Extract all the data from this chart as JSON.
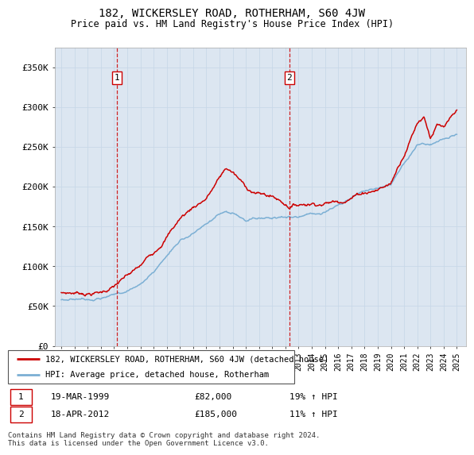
{
  "title": "182, WICKERSLEY ROAD, ROTHERHAM, S60 4JW",
  "subtitle": "Price paid vs. HM Land Registry's House Price Index (HPI)",
  "legend_line1": "182, WICKERSLEY ROAD, ROTHERHAM, S60 4JW (detached house)",
  "legend_line2": "HPI: Average price, detached house, Rotherham",
  "transaction1_date": "19-MAR-1999",
  "transaction1_price": "£82,000",
  "transaction1_hpi": "19% ↑ HPI",
  "transaction2_date": "18-APR-2012",
  "transaction2_price": "£185,000",
  "transaction2_hpi": "11% ↑ HPI",
  "footer": "Contains HM Land Registry data © Crown copyright and database right 2024.\nThis data is licensed under the Open Government Licence v3.0.",
  "price_line_color": "#cc0000",
  "hpi_line_color": "#7bafd4",
  "background_color": "#dce6f1",
  "plot_bg_color": "#ffffff",
  "grid_color": "#c8d8e8",
  "ylim": [
    0,
    375000
  ],
  "yticks": [
    0,
    50000,
    100000,
    150000,
    200000,
    250000,
    300000,
    350000
  ],
  "ytick_labels": [
    "£0",
    "£50K",
    "£100K",
    "£150K",
    "£200K",
    "£250K",
    "£300K",
    "£350K"
  ],
  "transaction1_x": 1999.21,
  "transaction2_x": 2012.29,
  "vline_color": "#cc0000",
  "hpi_waypoints_x": [
    1995,
    1996,
    1997,
    1998,
    1999,
    2000,
    2001,
    2002,
    2003,
    2004,
    2005,
    2006,
    2007,
    2008,
    2009,
    2010,
    2011,
    2012,
    2013,
    2014,
    2015,
    2016,
    2017,
    2018,
    2019,
    2020,
    2021,
    2022,
    2023,
    2024,
    2025
  ],
  "hpi_waypoints_y": [
    58000,
    60000,
    62000,
    65000,
    68000,
    74000,
    82000,
    98000,
    118000,
    138000,
    148000,
    157000,
    168000,
    165000,
    153000,
    156000,
    158000,
    160000,
    162000,
    166000,
    170000,
    177000,
    186000,
    193000,
    198000,
    202000,
    230000,
    252000,
    255000,
    262000,
    265000
  ],
  "price_waypoints_x": [
    1995,
    1996,
    1997,
    1998,
    1999.0,
    1999.21,
    2000,
    2001,
    2002,
    2003,
    2004,
    2005,
    2006,
    2007,
    2007.5,
    2008,
    2009,
    2010,
    2011,
    2012.0,
    2012.29,
    2013,
    2014,
    2015,
    2016,
    2017,
    2018,
    2019,
    2020,
    2021,
    2022,
    2022.5,
    2023,
    2023.5,
    2024,
    2025
  ],
  "price_waypoints_y": [
    67000,
    68000,
    69000,
    71000,
    79000,
    82000,
    90000,
    100000,
    118000,
    142000,
    165000,
    180000,
    193000,
    218000,
    230000,
    225000,
    205000,
    198000,
    195000,
    187000,
    185000,
    188000,
    192000,
    195000,
    198000,
    207000,
    215000,
    220000,
    228000,
    268000,
    310000,
    320000,
    295000,
    310000,
    305000,
    320000
  ]
}
